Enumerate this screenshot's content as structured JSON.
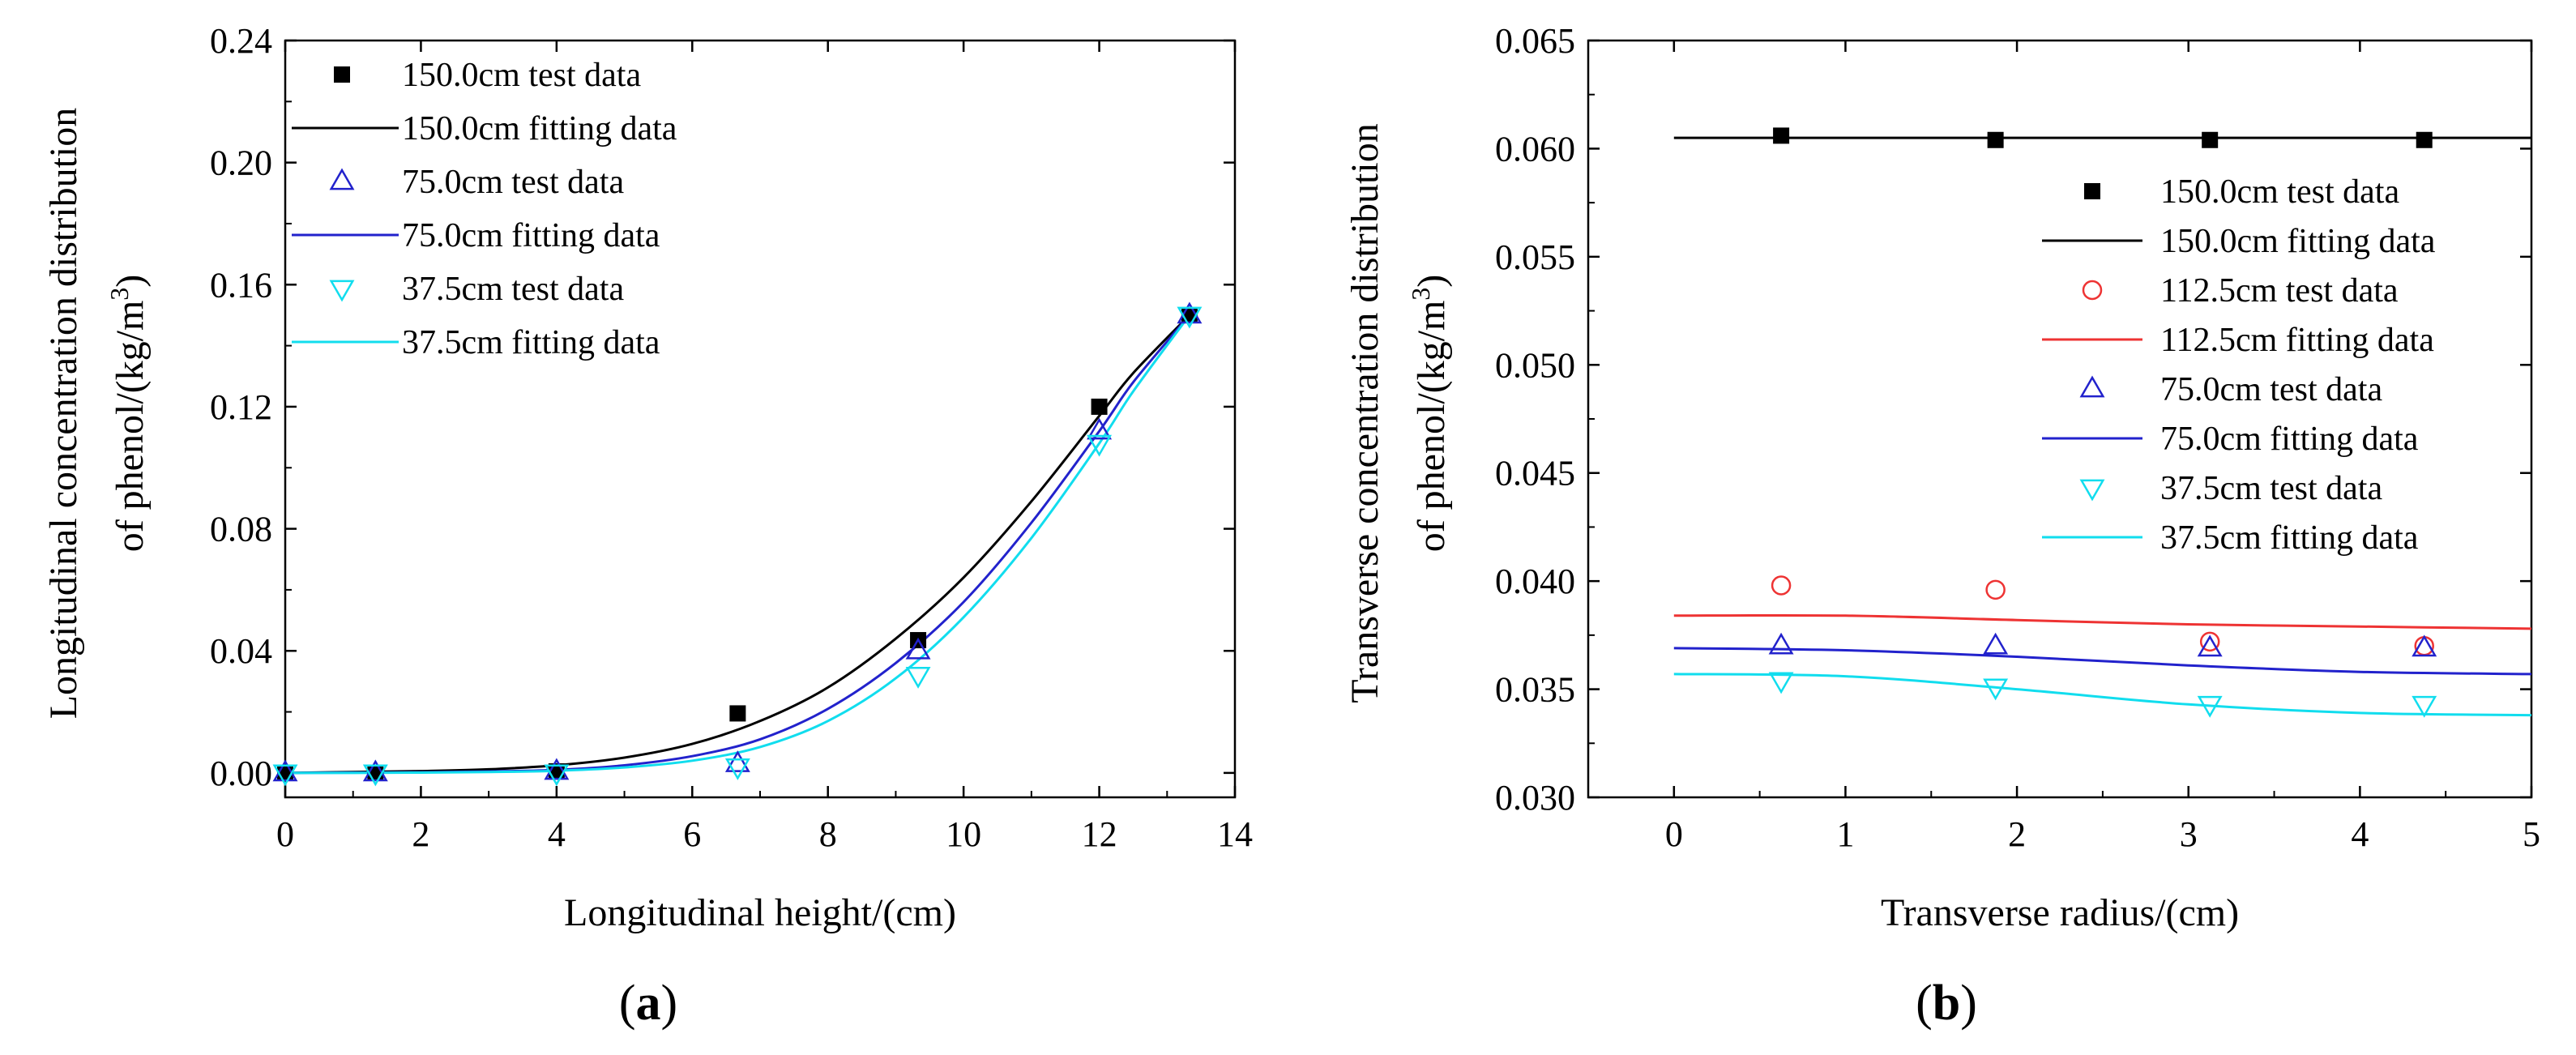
{
  "colors": {
    "150.0cm": "#000000",
    "112.5cm": "#ee3333",
    "75.0cm": "#2222cc",
    "37.5cm": "#11ddee"
  },
  "chart_data": [
    {
      "panel": "a",
      "panel_label_open": "(",
      "panel_label_letter": "a",
      "panel_label_close": ")",
      "type": "scatter",
      "xlabel": "Longitudinal height/(cm)",
      "ylabel_line1": "Longitudinal concentration distribution",
      "ylabel_line2_prefix": "of phenol/(kg/m",
      "ylabel_line2_sup": "3",
      "ylabel_line2_suffix": ")",
      "xlim": [
        0,
        14
      ],
      "ylim": [
        -0.008,
        0.24
      ],
      "xticks": [
        0,
        2,
        4,
        6,
        8,
        10,
        12,
        14
      ],
      "xtick_labels": [
        "0",
        "2",
        "4",
        "6",
        "8",
        "10",
        "12",
        "14"
      ],
      "yticks": [
        0,
        0.04,
        0.08,
        0.12,
        0.16,
        0.2,
        0.24
      ],
      "ytick_labels": [
        "0.00",
        "0.04",
        "0.08",
        "0.12",
        "0.16",
        "0.20",
        "0.24"
      ],
      "series": [
        {
          "name": "150.0cm test data",
          "kind": "points",
          "marker": "square",
          "color_key": "150.0cm",
          "x": [
            0,
            1.33,
            4.0,
            6.67,
            9.33,
            12.0,
            13.33
          ],
          "y": [
            0.0,
            0.0,
            0.0005,
            0.0195,
            0.0435,
            0.12,
            0.15
          ]
        },
        {
          "name": "150.0cm fitting data",
          "kind": "line",
          "color_key": "150.0cm",
          "x": [
            0,
            1,
            2,
            3,
            4,
            5,
            6,
            7,
            8,
            9,
            10,
            11,
            12,
            12.5,
            13.33
          ],
          "y": [
            0.0,
            0.0003,
            0.0006,
            0.0012,
            0.0025,
            0.005,
            0.0095,
            0.017,
            0.028,
            0.044,
            0.064,
            0.089,
            0.117,
            0.131,
            0.15
          ]
        },
        {
          "name": "75.0cm test data",
          "kind": "points",
          "marker": "triangle-up",
          "color_key": "75.0cm",
          "x": [
            0,
            1.33,
            4.0,
            6.67,
            9.33,
            12.0,
            13.33
          ],
          "y": [
            0.0,
            0.0,
            0.0005,
            0.003,
            0.04,
            0.112,
            0.15
          ]
        },
        {
          "name": "75.0cm fitting data",
          "kind": "line",
          "color_key": "75.0cm",
          "x": [
            0,
            1,
            2,
            3,
            4,
            5,
            6,
            7,
            8,
            9,
            10,
            11,
            12,
            12.5,
            13.33
          ],
          "y": [
            0.0,
            0.0001,
            0.0002,
            0.0005,
            0.001,
            0.0025,
            0.0055,
            0.011,
            0.021,
            0.036,
            0.056,
            0.082,
            0.112,
            0.128,
            0.15
          ]
        },
        {
          "name": "37.5cm test data",
          "kind": "points",
          "marker": "triangle-down",
          "color_key": "37.5cm",
          "x": [
            0,
            1.33,
            4.0,
            6.67,
            9.33,
            12.0,
            13.33
          ],
          "y": [
            0.0,
            0.0,
            0.0,
            0.002,
            0.032,
            0.108,
            0.15
          ]
        },
        {
          "name": "37.5cm fitting data",
          "kind": "line",
          "color_key": "37.5cm",
          "x": [
            0,
            1,
            2,
            3,
            4,
            5,
            6,
            7,
            8,
            9,
            10,
            11,
            12,
            12.5,
            13.33
          ],
          "y": [
            0.0,
            0.0,
            0.0001,
            0.0003,
            0.0007,
            0.0018,
            0.004,
            0.0085,
            0.017,
            0.031,
            0.051,
            0.077,
            0.108,
            0.125,
            0.15
          ]
        }
      ],
      "legend_position": "top-left"
    },
    {
      "panel": "b",
      "panel_label_open": "(",
      "panel_label_letter": "b",
      "panel_label_close": ")",
      "type": "scatter",
      "xlabel": "Transverse radius/(cm)",
      "ylabel_line1": "Transverse concentration distribution",
      "ylabel_line2_prefix": "of phenol/(kg/m",
      "ylabel_line2_sup": "3",
      "ylabel_line2_suffix": ")",
      "xlim": [
        -0.5,
        5
      ],
      "ylim": [
        0.03,
        0.065
      ],
      "xticks": [
        0,
        1,
        2,
        3,
        4,
        5
      ],
      "xtick_labels": [
        "0",
        "1",
        "2",
        "3",
        "4",
        "5"
      ],
      "yticks": [
        0.03,
        0.035,
        0.04,
        0.045,
        0.05,
        0.055,
        0.06,
        0.065
      ],
      "ytick_labels": [
        "0.030",
        "0.035",
        "0.040",
        "0.045",
        "0.050",
        "0.055",
        "0.060",
        "0.065"
      ],
      "series": [
        {
          "name": "150.0cm test data",
          "kind": "points",
          "marker": "square",
          "color_key": "150.0cm",
          "x": [
            0.625,
            1.875,
            3.125,
            4.375
          ],
          "y": [
            0.0606,
            0.0604,
            0.0604,
            0.0604
          ]
        },
        {
          "name": "150.0cm fitting data",
          "kind": "line",
          "color_key": "150.0cm",
          "x": [
            0,
            1,
            2,
            3,
            4,
            5
          ],
          "y": [
            0.0605,
            0.0605,
            0.0605,
            0.0605,
            0.0605,
            0.0605
          ]
        },
        {
          "name": "112.5cm test data",
          "kind": "points",
          "marker": "circle",
          "color_key": "112.5cm",
          "x": [
            0.625,
            1.875,
            3.125,
            4.375
          ],
          "y": [
            0.0398,
            0.0396,
            0.0372,
            0.037
          ]
        },
        {
          "name": "112.5cm fitting data",
          "kind": "line",
          "color_key": "112.5cm",
          "x": [
            0,
            1,
            2,
            3,
            4,
            5
          ],
          "y": [
            0.0384,
            0.0384,
            0.0382,
            0.038,
            0.0379,
            0.0378
          ]
        },
        {
          "name": "75.0cm test data",
          "kind": "points",
          "marker": "triangle-up",
          "color_key": "75.0cm",
          "x": [
            0.625,
            1.875,
            3.125,
            4.375
          ],
          "y": [
            0.037,
            0.037,
            0.0369,
            0.0369
          ]
        },
        {
          "name": "75.0cm fitting data",
          "kind": "line",
          "color_key": "75.0cm",
          "x": [
            0,
            1,
            2,
            3,
            4,
            5
          ],
          "y": [
            0.0369,
            0.0368,
            0.0365,
            0.0361,
            0.0358,
            0.0357
          ]
        },
        {
          "name": "37.5cm test data",
          "kind": "points",
          "marker": "triangle-down",
          "color_key": "37.5cm",
          "x": [
            0.625,
            1.875,
            3.125,
            4.375
          ],
          "y": [
            0.0354,
            0.0351,
            0.0343,
            0.0343
          ]
        },
        {
          "name": "37.5cm fitting data",
          "kind": "line",
          "color_key": "37.5cm",
          "x": [
            0,
            1,
            2,
            3,
            4,
            5
          ],
          "y": [
            0.0357,
            0.0356,
            0.035,
            0.0343,
            0.0339,
            0.0338
          ]
        }
      ],
      "legend_position": "top-right"
    }
  ]
}
